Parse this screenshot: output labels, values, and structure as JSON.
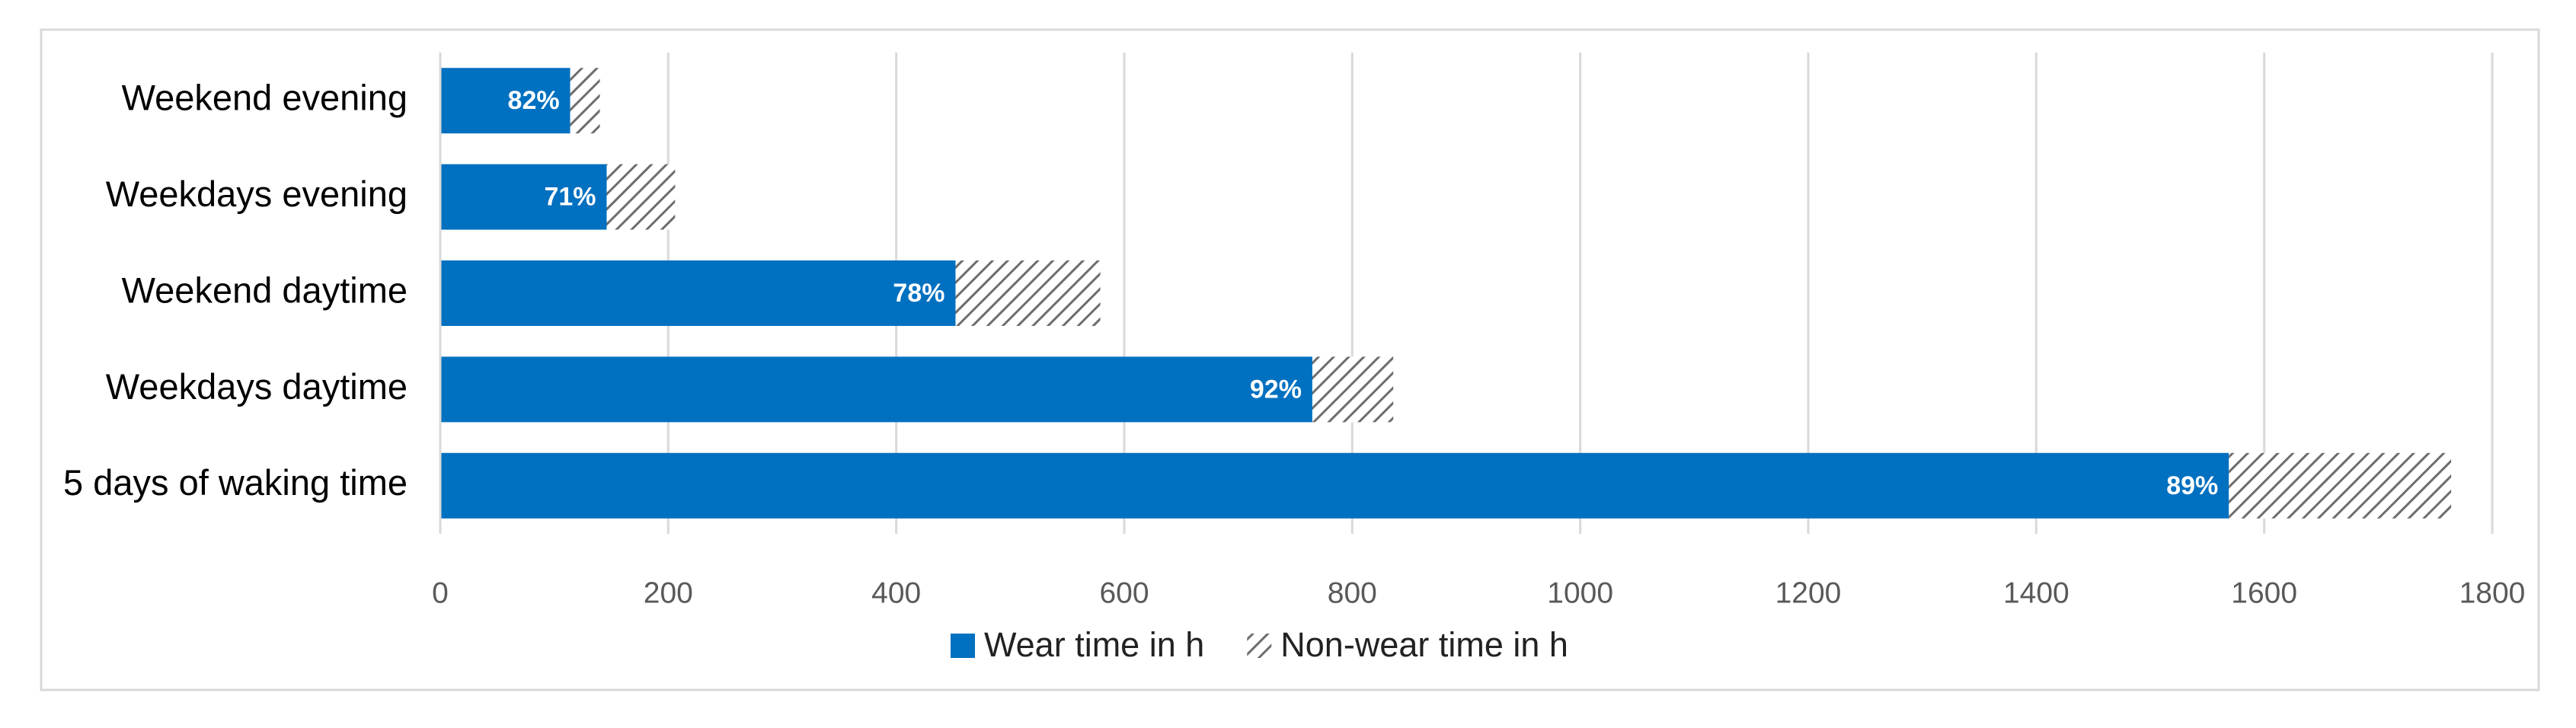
{
  "chart_data": {
    "type": "stacked-barh",
    "categories": [
      "Weekend evening",
      "Weekdays evening",
      "Weekend daytime",
      "Weekdays daytime",
      "5 days of waking time"
    ],
    "series": [
      {
        "name": "Wear time in h",
        "color": "#0070c0",
        "values": [
          114,
          146,
          452,
          765,
          1569
        ],
        "value_labels": [
          "82%",
          "71%",
          "78%",
          "92%",
          "89%"
        ]
      },
      {
        "name": "Non-wear time in h",
        "color": "#7f7f7f",
        "pattern": "hatch",
        "values": [
          26,
          60,
          127,
          71,
          195
        ]
      }
    ],
    "xlim": [
      0,
      1800
    ],
    "xticks": [
      0,
      200,
      400,
      600,
      800,
      1000,
      1200,
      1400,
      1600,
      1800
    ],
    "grid": true,
    "legend": "bottom"
  }
}
